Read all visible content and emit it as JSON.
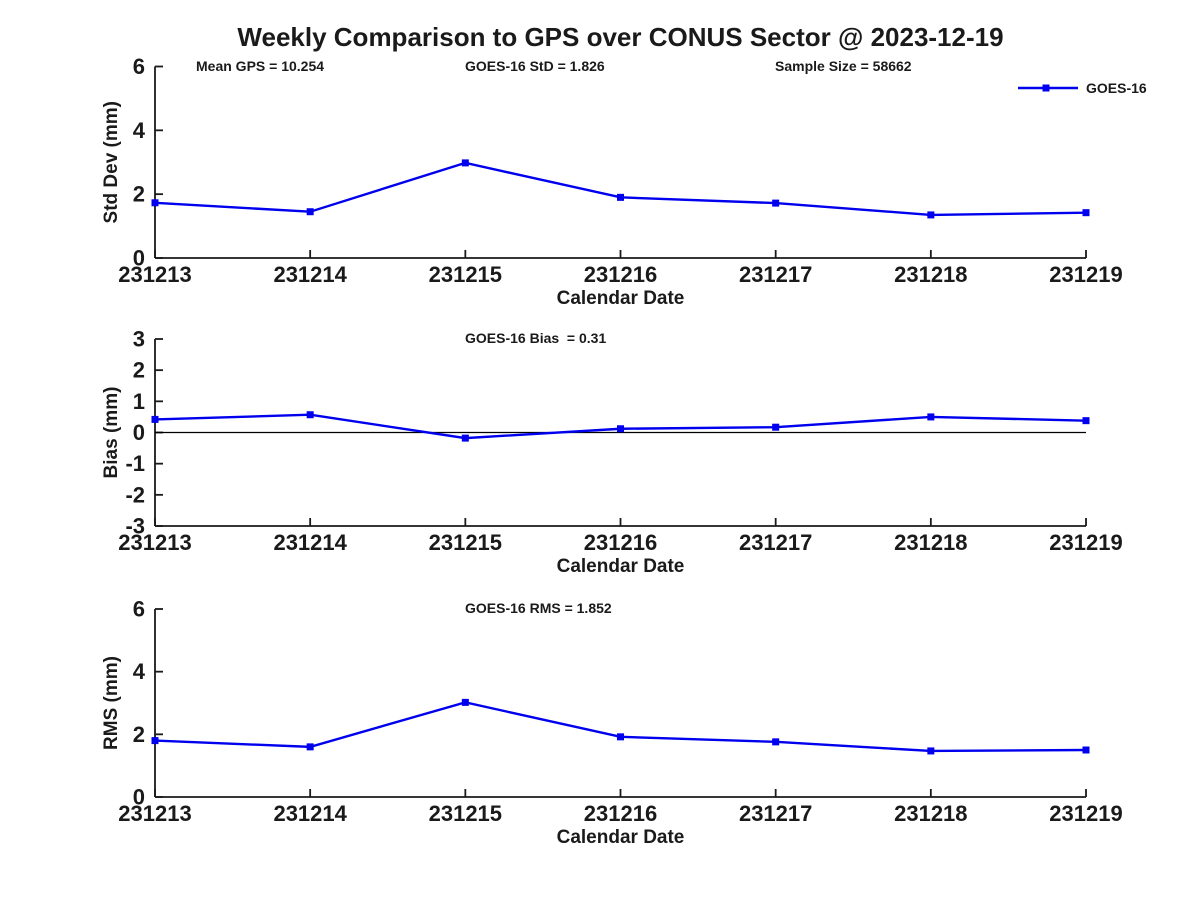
{
  "figure": {
    "title": "Weekly Comparison to GPS over CONUS Sector @ 2023-12-19",
    "background": "#ffffff"
  },
  "colors": {
    "series": "#0000ee",
    "axis": "#1a1a1a",
    "text": "#1a1a1a",
    "zero_line": "#000000"
  },
  "legend": {
    "label": "GOES-16",
    "position": "upper right",
    "frame": false
  },
  "chart_data": [
    {
      "type": "line",
      "title": "Weekly Comparison to GPS over CONUS Sector @ 2023-12-19",
      "annotations": [
        "Mean GPS = 10.254",
        "GOES-16 StD = 1.826",
        "Sample Size = 58662"
      ],
      "categories": [
        "231213",
        "231214",
        "231215",
        "231216",
        "231217",
        "231218",
        "231219"
      ],
      "series": [
        {
          "name": "GOES-16",
          "marker": "square",
          "color": "#0000ee",
          "values": [
            1.73,
            1.45,
            2.98,
            1.9,
            1.72,
            1.35,
            1.42
          ]
        }
      ],
      "xlabel": "Calendar Date",
      "ylabel": "Std Dev (mm)",
      "ylim": [
        0,
        6
      ],
      "yticks": [
        0,
        2,
        4,
        6
      ],
      "zero_line": false,
      "grid": false,
      "legend_entry": "GOES-16"
    },
    {
      "type": "line",
      "title": "GOES-16 Bias  = 0.31",
      "annotations": [],
      "categories": [
        "231213",
        "231214",
        "231215",
        "231216",
        "231217",
        "231218",
        "231219"
      ],
      "series": [
        {
          "name": "GOES-16",
          "marker": "square",
          "color": "#0000ee",
          "values": [
            0.42,
            0.57,
            -0.18,
            0.12,
            0.17,
            0.5,
            0.38
          ]
        }
      ],
      "xlabel": "Calendar Date",
      "ylabel": "Bias (mm)",
      "ylim": [
        -3,
        3
      ],
      "yticks": [
        -3,
        -2,
        -1,
        0,
        1,
        2,
        3
      ],
      "zero_line": true,
      "grid": false
    },
    {
      "type": "line",
      "title": "GOES-16 RMS = 1.852",
      "annotations": [],
      "categories": [
        "231213",
        "231214",
        "231215",
        "231216",
        "231217",
        "231218",
        "231219"
      ],
      "series": [
        {
          "name": "GOES-16",
          "marker": "square",
          "color": "#0000ee",
          "values": [
            1.8,
            1.6,
            3.02,
            1.92,
            1.76,
            1.47,
            1.5
          ]
        }
      ],
      "xlabel": "Calendar Date",
      "ylabel": "RMS (mm)",
      "ylim": [
        0,
        6
      ],
      "yticks": [
        0,
        2,
        4,
        6
      ],
      "zero_line": false,
      "grid": false
    }
  ]
}
